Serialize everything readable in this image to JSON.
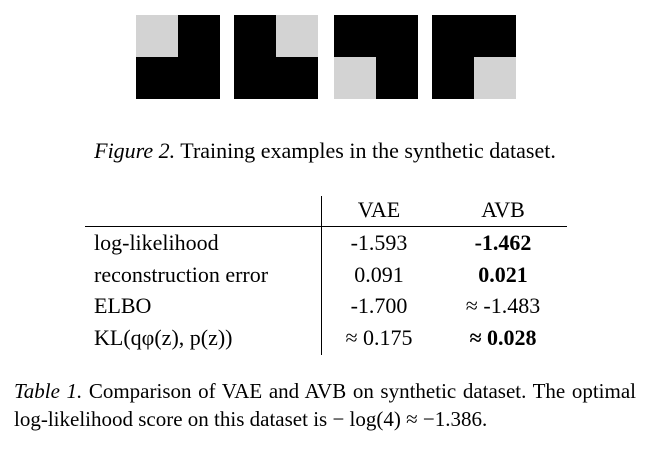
{
  "figure": {
    "tiles": [
      {
        "name": "tile-1",
        "pattern": [
          "light",
          "dark",
          "dark",
          "dark"
        ]
      },
      {
        "name": "tile-2",
        "pattern": [
          "dark",
          "light",
          "dark",
          "dark"
        ]
      },
      {
        "name": "tile-3",
        "pattern": [
          "dark",
          "dark",
          "light",
          "dark"
        ]
      },
      {
        "name": "tile-4",
        "pattern": [
          "dark",
          "dark",
          "dark",
          "light"
        ]
      }
    ],
    "colors": {
      "dark": "#000000",
      "light": "#d3d3d3"
    },
    "caption_label": "Figure 2.",
    "caption_text": " Training examples in the synthetic dataset."
  },
  "table": {
    "headers": [
      "VAE",
      "AVB"
    ],
    "rows": [
      {
        "label": "log-likelihood",
        "vae": "-1.593",
        "avb": "-1.462",
        "avb_bold": true
      },
      {
        "label": "reconstruction error",
        "vae": "0.091",
        "avb": "0.021",
        "avb_bold": true
      },
      {
        "label": "ELBO",
        "vae": "-1.700",
        "avb": "≈ -1.483",
        "avb_bold": false
      },
      {
        "label": "KL(qφ(z), p(z))",
        "vae": "≈ 0.175",
        "avb": "≈ 0.028",
        "avb_bold": true
      }
    ]
  },
  "table_caption": {
    "label": "Table 1.",
    "text": " Comparison of VAE and AVB on synthetic dataset. The optimal log-likelihood score on this dataset is − log(4) ≈ −1.386."
  }
}
